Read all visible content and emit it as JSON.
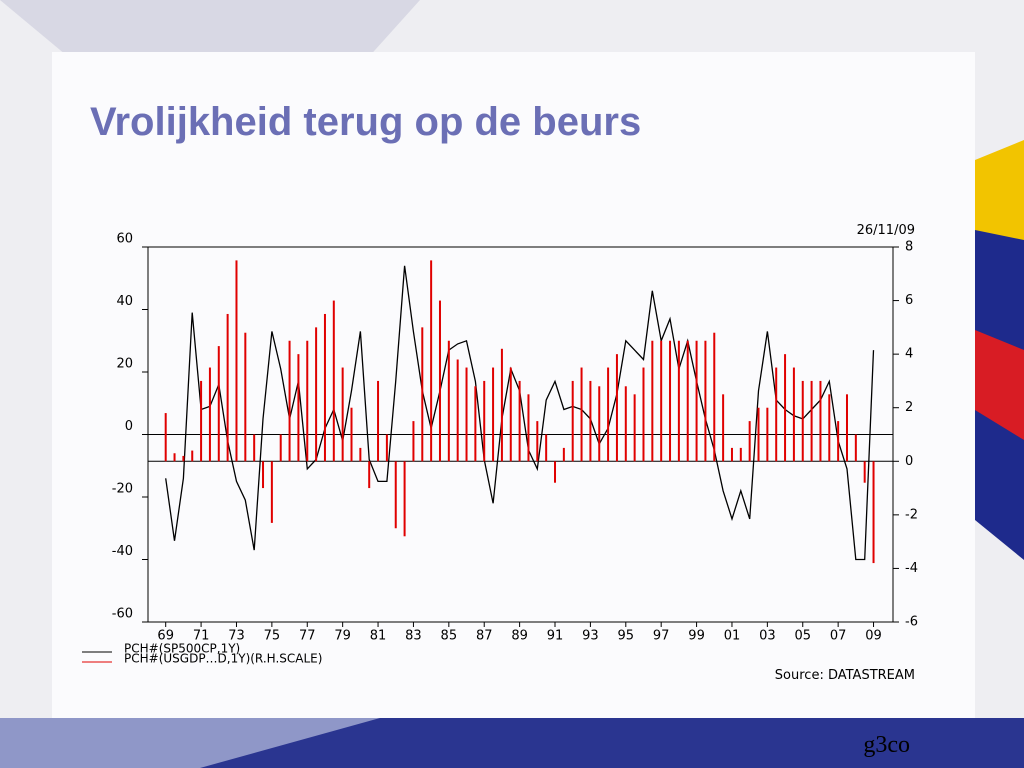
{
  "chart_data": {
    "type": "combo",
    "title": "Vrolijkheid terug op de beurs",
    "date": "26/11/09",
    "source": "Source: DATASTREAM",
    "footer": "g3co",
    "xlim": [
      1968,
      2010.1
    ],
    "xticks": [
      {
        "value": 1969,
        "label": "69"
      },
      {
        "value": 1971,
        "label": "71"
      },
      {
        "value": 1973,
        "label": "73"
      },
      {
        "value": 1975,
        "label": "75"
      },
      {
        "value": 1977,
        "label": "77"
      },
      {
        "value": 1979,
        "label": "79"
      },
      {
        "value": 1981,
        "label": "81"
      },
      {
        "value": 1983,
        "label": "83"
      },
      {
        "value": 1985,
        "label": "85"
      },
      {
        "value": 1987,
        "label": "87"
      },
      {
        "value": 1989,
        "label": "89"
      },
      {
        "value": 1991,
        "label": "91"
      },
      {
        "value": 1993,
        "label": "93"
      },
      {
        "value": 1995,
        "label": "95"
      },
      {
        "value": 1997,
        "label": "97"
      },
      {
        "value": 1999,
        "label": "99"
      },
      {
        "value": 2001,
        "label": "01"
      },
      {
        "value": 2003,
        "label": "03"
      },
      {
        "value": 2005,
        "label": "05"
      },
      {
        "value": 2007,
        "label": "07"
      },
      {
        "value": 2009,
        "label": "09"
      }
    ],
    "ylim": [
      -60,
      60
    ],
    "yticks": [
      -60,
      -40,
      -20,
      0,
      20,
      40,
      60
    ],
    "y2lim": [
      -6,
      8
    ],
    "y2ticks": [
      -6,
      -4,
      -2,
      0,
      2,
      4,
      6,
      8
    ],
    "grid": false,
    "x": [
      1969,
      1969.5,
      1970,
      1970.5,
      1971,
      1971.5,
      1972,
      1972.5,
      1973,
      1973.5,
      1974,
      1974.5,
      1975,
      1975.5,
      1976,
      1976.5,
      1977,
      1977.5,
      1978,
      1978.5,
      1979,
      1979.5,
      1980,
      1980.5,
      1981,
      1981.5,
      1982,
      1982.5,
      1983,
      1983.5,
      1984,
      1984.5,
      1985,
      1985.5,
      1986,
      1986.5,
      1987,
      1987.5,
      1988,
      1988.5,
      1989,
      1989.5,
      1990,
      1990.5,
      1991,
      1991.5,
      1992,
      1992.5,
      1993,
      1993.5,
      1994,
      1994.5,
      1995,
      1995.5,
      1996,
      1996.5,
      1997,
      1997.5,
      1998,
      1998.5,
      1999,
      1999.5,
      2000,
      2000.5,
      2001,
      2001.5,
      2002,
      2002.5,
      2003,
      2003.5,
      2004,
      2004.5,
      2005,
      2005.5,
      2006,
      2006.5,
      2007,
      2007.5,
      2008,
      2008.5,
      2009
    ],
    "series": [
      {
        "name": "PCH#(SP500CP,1Y)",
        "color": "#000000",
        "type": "line",
        "values": [
          -14,
          -34,
          -14,
          39,
          8,
          9,
          16,
          -2,
          -15,
          -21,
          -37,
          5,
          33,
          21,
          5,
          17,
          -11,
          -8,
          2,
          8,
          -2,
          14,
          33,
          -8,
          -15,
          -15,
          17,
          54,
          33,
          14,
          2,
          14,
          27,
          29,
          30,
          17,
          -8,
          -22,
          5,
          21,
          14,
          -5,
          -11,
          11,
          17,
          8,
          9,
          8,
          5,
          -3,
          2,
          13,
          30,
          27,
          24,
          46,
          30,
          37,
          21,
          30,
          17,
          5,
          -5,
          -18,
          -27,
          -18,
          -27,
          14,
          33,
          11,
          8,
          6,
          5,
          8,
          11,
          17,
          -2,
          -11,
          -40,
          -40,
          27
        ]
      },
      {
        "name": "PCH#(USGDP…D,1Y)(R.H.SCALE)",
        "color": "#e00000",
        "type": "bar",
        "axis": "y2",
        "values": [
          1.8,
          0.3,
          0.2,
          0.4,
          3.0,
          3.5,
          4.3,
          5.5,
          7.5,
          4.8,
          1.0,
          -1.0,
          -2.3,
          1.0,
          4.5,
          4.0,
          4.5,
          5.0,
          5.5,
          6.0,
          3.5,
          2.0,
          0.5,
          -1.0,
          3.0,
          1.0,
          -2.5,
          -2.8,
          1.5,
          5.0,
          7.5,
          6.0,
          4.5,
          3.8,
          3.5,
          2.8,
          3.0,
          3.5,
          4.2,
          3.5,
          3.0,
          2.5,
          1.5,
          1.0,
          -0.8,
          0.5,
          3.0,
          3.5,
          3.0,
          2.8,
          3.5,
          4.0,
          2.8,
          2.5,
          3.5,
          4.5,
          4.5,
          4.5,
          4.5,
          4.5,
          4.5,
          4.5,
          4.8,
          2.5,
          0.5,
          0.5,
          1.5,
          2.0,
          2.0,
          3.5,
          4.0,
          3.5,
          3.0,
          3.0,
          3.0,
          2.5,
          1.5,
          2.5,
          1.0,
          -0.8,
          -3.8
        ]
      }
    ]
  }
}
